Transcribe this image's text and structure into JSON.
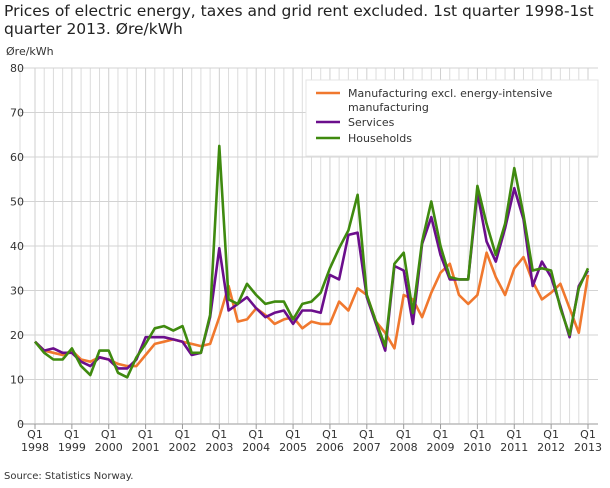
{
  "chart_data": {
    "type": "line",
    "title": "Prices of electric energy, taxes and grid rent excluded. 1st quarter 1998-1st quarter 2013. Øre/kWh",
    "ylabel": "Øre/kWh",
    "ylim": [
      0,
      80
    ],
    "yticks": [
      0,
      10,
      20,
      30,
      40,
      50,
      60,
      70,
      80
    ],
    "xtick_labels": [
      "Q1 1998",
      "Q1 1999",
      "Q1 2000",
      "Q1 2001",
      "Q1 2002",
      "Q1 2003",
      "Q1 2004",
      "Q1 2005",
      "Q1 2006",
      "Q1 2007",
      "Q1 2008",
      "Q1 2009",
      "Q1 2010",
      "Q1 2011",
      "Q1 2012",
      "Q1 2013"
    ],
    "x_start": "1998Q1",
    "x_end": "2013Q1",
    "frequency": "quarterly",
    "grid": true,
    "legend": "top-right",
    "source": "Source: Statistics Norway.",
    "series": [
      {
        "name": "Manufacturing excl. energy-intensive manufacturing",
        "color": "#f0782e",
        "values": [
          18.5,
          16.5,
          16,
          15.5,
          16.5,
          14.5,
          14,
          15,
          14.5,
          13.5,
          13,
          13,
          15.5,
          18,
          18.5,
          19,
          18.5,
          18,
          17.5,
          18,
          24,
          31,
          23,
          23.5,
          26,
          24.5,
          22.5,
          23.5,
          24,
          21.5,
          23,
          22.5,
          22.5,
          27.5,
          25.5,
          30.5,
          29,
          23,
          20.5,
          17,
          29,
          28,
          24,
          29.5,
          34,
          36,
          29,
          27,
          29,
          38.5,
          33,
          29,
          35,
          37.5,
          32,
          28,
          29.5,
          31.5,
          26,
          20.5,
          33.5
        ]
      },
      {
        "name": "Services",
        "color": "#6b0e8c",
        "values": [
          18.5,
          16.5,
          17,
          16,
          16,
          14,
          13,
          15,
          14.5,
          12.5,
          12.5,
          14.5,
          19.5,
          19.5,
          19.5,
          19,
          18.5,
          15.5,
          16,
          24,
          39.5,
          25.5,
          27,
          28.5,
          26,
          24,
          25,
          25.5,
          22.5,
          25.5,
          25.5,
          25,
          33.5,
          32.5,
          42.5,
          43,
          28.5,
          22.5,
          16.5,
          35.5,
          34.5,
          22.5,
          40.5,
          46.5,
          38,
          32.5,
          32.5,
          32.5,
          52,
          41,
          36.5,
          44,
          53,
          46,
          31,
          36.5,
          33,
          26.5,
          19.5,
          31,
          34.5
        ]
      },
      {
        "name": "Households",
        "color": "#3f8a0f",
        "values": [
          18.5,
          16,
          14.5,
          14.5,
          17,
          13,
          11,
          16.5,
          16.5,
          11.5,
          10.5,
          15,
          18,
          21.5,
          22,
          21,
          22,
          16,
          16,
          24.5,
          62.5,
          28,
          27,
          31.5,
          29,
          27,
          27.5,
          27.5,
          23.5,
          27,
          27.5,
          29.5,
          35,
          39.5,
          43.5,
          51.5,
          29,
          23,
          17.5,
          36,
          38.5,
          25,
          41,
          50,
          40,
          33,
          32.5,
          32.5,
          53.5,
          45,
          38,
          45,
          57.5,
          47,
          34.5,
          35,
          34.5,
          26,
          20,
          30.5,
          35
        ]
      }
    ]
  }
}
